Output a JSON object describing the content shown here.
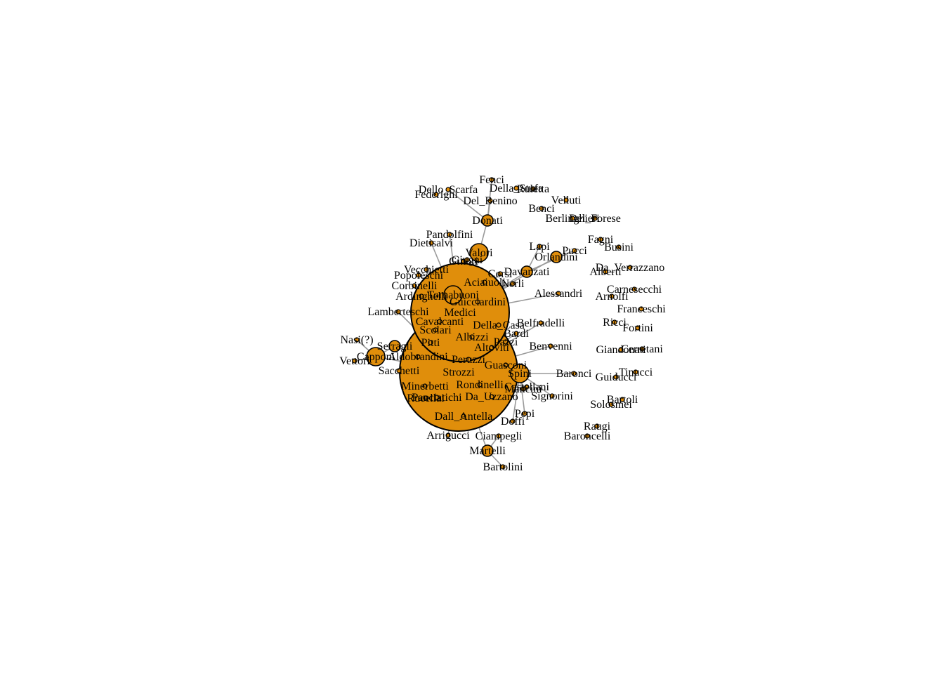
{
  "graph": {
    "node_color": "#e08e0b",
    "edge_color": "#9a9a9a",
    "nodes": [
      {
        "id": "Strozzi",
        "label": "Strozzi",
        "size": "xl"
      },
      {
        "id": "Medici",
        "label": "Medici",
        "size": "lg"
      },
      {
        "id": "Capponi",
        "label": "Capponi",
        "size": "md"
      },
      {
        "id": "Spini",
        "label": "Spini",
        "size": "md"
      },
      {
        "id": "Valori",
        "label": "Valori",
        "size": "md"
      },
      {
        "id": "Tornabuoni",
        "label": "Tornabuoni",
        "size": "md"
      },
      {
        "id": "Davanzati",
        "label": "Davanzati",
        "size": "sm"
      },
      {
        "id": "Donati",
        "label": "Donati",
        "size": "sm"
      },
      {
        "id": "Serragli",
        "label": "Serragli",
        "size": "sm"
      },
      {
        "id": "Orlandini",
        "label": "Orlandini",
        "size": "sm"
      },
      {
        "id": "Martelli",
        "label": "Martelli",
        "size": "sm"
      },
      {
        "id": "Carnesecchi",
        "label": "Carnesecchi",
        "size": "xs"
      },
      {
        "id": "Ginori",
        "label": "Ginori",
        "size": "xs"
      },
      {
        "id": "Rucellai",
        "label": "Rucellai",
        "size": "xs"
      },
      {
        "id": "Fenci",
        "label": "Fenci",
        "size": "xs"
      },
      {
        "id": "Dello_Scarfa",
        "label": "Dello_Scarfa",
        "size": "xs"
      },
      {
        "id": "Federighi",
        "label": "Federighi",
        "size": "xs"
      },
      {
        "id": "Della_Stufa",
        "label": "Della_Stufa",
        "size": "xs"
      },
      {
        "id": "Del_Benino",
        "label": "Del_Benino",
        "size": "xs"
      },
      {
        "id": "Ruletta",
        "label": "Ruletta",
        "size": "xs"
      },
      {
        "id": "Velluti",
        "label": "Velluti",
        "size": "xs"
      },
      {
        "id": "Benci",
        "label": "Benci",
        "size": "xs"
      },
      {
        "id": "Berlinghieri",
        "label": "Berlinghieri",
        "size": "xs"
      },
      {
        "id": "Del_Forese",
        "label": "Del_Forese",
        "size": "xs"
      },
      {
        "id": "Pandolfini",
        "label": "Pandolfini",
        "size": "xs"
      },
      {
        "id": "Dietisalvi",
        "label": "Dietisalvi",
        "size": "xs"
      },
      {
        "id": "Corsi",
        "label": "Corsi",
        "size": "xs"
      },
      {
        "id": "Giugni",
        "label": "Giugni",
        "size": "xs"
      },
      {
        "id": "Lapi",
        "label": "Lapi",
        "size": "xs"
      },
      {
        "id": "Pucci",
        "label": "Pucci",
        "size": "xs"
      },
      {
        "id": "Fagni",
        "label": "Fagni",
        "size": "xs"
      },
      {
        "id": "Busini",
        "label": "Busini",
        "size": "xs"
      },
      {
        "id": "Da_Verrazzano",
        "label": "Da_Verrazzano",
        "size": "xs"
      },
      {
        "id": "Alberti",
        "label": "Alberti",
        "size": "xs"
      },
      {
        "id": "Vecchietti",
        "label": "Vecchietti",
        "size": "xs"
      },
      {
        "id": "Popoleschi",
        "label": "Popoleschi",
        "size": "xs"
      },
      {
        "id": "Corbinelli",
        "label": "Corbinelli",
        "size": "xs"
      },
      {
        "id": "Nerli",
        "label": "Nerli",
        "size": "xs"
      },
      {
        "id": "Alessandri",
        "label": "Alessandri",
        "size": "xs"
      },
      {
        "id": "Arnolfi",
        "label": "Arnolfi",
        "size": "xs"
      },
      {
        "id": "Aciaiuoli",
        "label": "Aciaiuoli",
        "size": "xs"
      },
      {
        "id": "Ardinghelli",
        "label": "Ardinghelli",
        "size": "xs"
      },
      {
        "id": "Scolari",
        "label": "Scolari",
        "size": "xs"
      },
      {
        "id": "Guicciardini",
        "label": "Guicciardini",
        "size": "xs"
      },
      {
        "id": "Franceschi",
        "label": "Franceschi",
        "size": "xs"
      },
      {
        "id": "Lamberteschi",
        "label": "Lamberteschi",
        "size": "xs"
      },
      {
        "id": "Rondinelli",
        "label": "Rondinelli",
        "size": "xs"
      },
      {
        "id": "Belfradelli",
        "label": "Belfradelli",
        "size": "xs"
      },
      {
        "id": "Ricci",
        "label": "Ricci",
        "size": "xs"
      },
      {
        "id": "Fortini",
        "label": "Fortini",
        "size": "xs"
      },
      {
        "id": "Cavalcanti",
        "label": "Cavalcanti",
        "size": "xs"
      },
      {
        "id": "Della_Casa",
        "label": "Della_Casa",
        "size": "xs"
      },
      {
        "id": "Peruzzi",
        "label": "Peruzzi",
        "size": "xs"
      },
      {
        "id": "Pazzi",
        "label": "Pazzi",
        "size": "xs"
      },
      {
        "id": "Baroncelli",
        "label": "Baroncelli",
        "size": "xs"
      },
      {
        "id": "Bardi",
        "label": "Bardi",
        "size": "xs"
      },
      {
        "id": "Benvenni",
        "label": "Benvenni",
        "size": "xs"
      },
      {
        "id": "Giandonati",
        "label": "Giandonati",
        "size": "xs"
      },
      {
        "id": "Cerretani",
        "label": "Cerretani",
        "size": "xs"
      },
      {
        "id": "Nasi",
        "label": "Nasi(?)",
        "size": "xs"
      },
      {
        "id": "Aldobrandini",
        "label": "Aldobrandini",
        "size": "xs"
      },
      {
        "id": "Altoviti",
        "label": "Altoviti",
        "size": "xs"
      },
      {
        "id": "Pitti",
        "label": "Pitti",
        "size": "xs"
      },
      {
        "id": "Guasconi",
        "label": "Guasconi",
        "size": "xs"
      },
      {
        "id": "Panciatichi",
        "label": "Panciatichi",
        "size": "xs"
      },
      {
        "id": "Vettori",
        "label": "Vettori",
        "size": "xs"
      },
      {
        "id": "Baronci",
        "label": "Baronci",
        "size": "xs"
      },
      {
        "id": "Guiducci",
        "label": "Guiducci",
        "size": "xs"
      },
      {
        "id": "Tinucci",
        "label": "Tinucci",
        "size": "xs"
      },
      {
        "id": "Sacchetti",
        "label": "Sacchetti",
        "size": "xs"
      },
      {
        "id": "Dall_Antella",
        "label": "Dall_Antella",
        "size": "xs"
      },
      {
        "id": "Minerbetti",
        "label": "Minerbetti",
        "size": "xs"
      },
      {
        "id": "Castellani",
        "label": "Castellani",
        "size": "xs"
      },
      {
        "id": "Mancini",
        "label": "Mancini",
        "size": "xs"
      },
      {
        "id": "Signorini",
        "label": "Signorini",
        "size": "xs"
      },
      {
        "id": "Da_Uzzano",
        "label": "Da_Uzzano",
        "size": "xs"
      },
      {
        "id": "Bartoli",
        "label": "Bartoli",
        "size": "xs"
      },
      {
        "id": "Solosmei",
        "label": "Solosmei",
        "size": "xs"
      },
      {
        "id": "Pepi",
        "label": "Pepi",
        "size": "xs"
      },
      {
        "id": "Doffi",
        "label": "Doffi",
        "size": "xs"
      },
      {
        "id": "Raugi",
        "label": "Raugi",
        "size": "xs"
      },
      {
        "id": "Arrigucci",
        "label": "Arrigucci",
        "size": "xs"
      },
      {
        "id": "Ciampegli",
        "label": "Ciampegli",
        "size": "xs"
      },
      {
        "id": "Bartolini",
        "label": "Bartolini",
        "size": "xs"
      },
      {
        "id": "Albizzi",
        "label": "Albizzi",
        "size": "xs"
      }
    ],
    "edges": [
      [
        "Medici",
        "Tornabuoni"
      ],
      [
        "Medici",
        "Valori"
      ],
      [
        "Medici",
        "Davanzati"
      ],
      [
        "Medici",
        "Orlandini"
      ],
      [
        "Medici",
        "Ginori"
      ],
      [
        "Medici",
        "Dietisalvi"
      ],
      [
        "Medici",
        "Pandolfini"
      ],
      [
        "Medici",
        "Giugni"
      ],
      [
        "Medici",
        "Corsi"
      ],
      [
        "Medici",
        "Nerli"
      ],
      [
        "Medici",
        "Cavalcanti"
      ],
      [
        "Medici",
        "Scolari"
      ],
      [
        "Medici",
        "Alessandri"
      ],
      [
        "Medici",
        "Guicciardini"
      ],
      [
        "Medici",
        "Corbinelli"
      ],
      [
        "Valori",
        "Donati"
      ],
      [
        "Donati",
        "Del_Benino"
      ],
      [
        "Donati",
        "Fenci"
      ],
      [
        "Donati",
        "Dello_Scarfa"
      ],
      [
        "Davanzati",
        "Pucci"
      ],
      [
        "Davanzati",
        "Lapi"
      ],
      [
        "Orlandini",
        "Pucci"
      ],
      [
        "Strozzi",
        "Capponi"
      ],
      [
        "Strozzi",
        "Spini"
      ],
      [
        "Strozzi",
        "Serragli"
      ],
      [
        "Strozzi",
        "Aldobrandini"
      ],
      [
        "Strozzi",
        "Sacchetti"
      ],
      [
        "Strozzi",
        "Minerbetti"
      ],
      [
        "Strozzi",
        "Rucellai"
      ],
      [
        "Strozzi",
        "Rondinelli"
      ],
      [
        "Strozzi",
        "Panciatichi"
      ],
      [
        "Strozzi",
        "Castellani"
      ],
      [
        "Strozzi",
        "Benvenni"
      ],
      [
        "Strozzi",
        "Belfradelli"
      ],
      [
        "Strozzi",
        "Guasconi"
      ],
      [
        "Strozzi",
        "Arrigucci"
      ],
      [
        "Strozzi",
        "Martelli"
      ],
      [
        "Strozzi",
        "Dall_Antella"
      ],
      [
        "Strozzi",
        "Lamberteschi"
      ],
      [
        "Strozzi",
        "Altoviti"
      ],
      [
        "Strozzi",
        "Peruzzi"
      ],
      [
        "Strozzi",
        "Bardi"
      ],
      [
        "Capponi",
        "Nasi"
      ],
      [
        "Capponi",
        "Vettori"
      ],
      [
        "Capponi",
        "Serragli"
      ],
      [
        "Spini",
        "Baronci"
      ],
      [
        "Spini",
        "Signorini"
      ],
      [
        "Spini",
        "Pepi"
      ],
      [
        "Spini",
        "Doffi"
      ],
      [
        "Spini",
        "Mancini"
      ],
      [
        "Martelli",
        "Bartolini"
      ],
      [
        "Martelli",
        "Ciampegli"
      ],
      [
        "Tornabuoni",
        "Vecchietti"
      ],
      [
        "Tornabuoni",
        "Popoleschi"
      ]
    ]
  }
}
